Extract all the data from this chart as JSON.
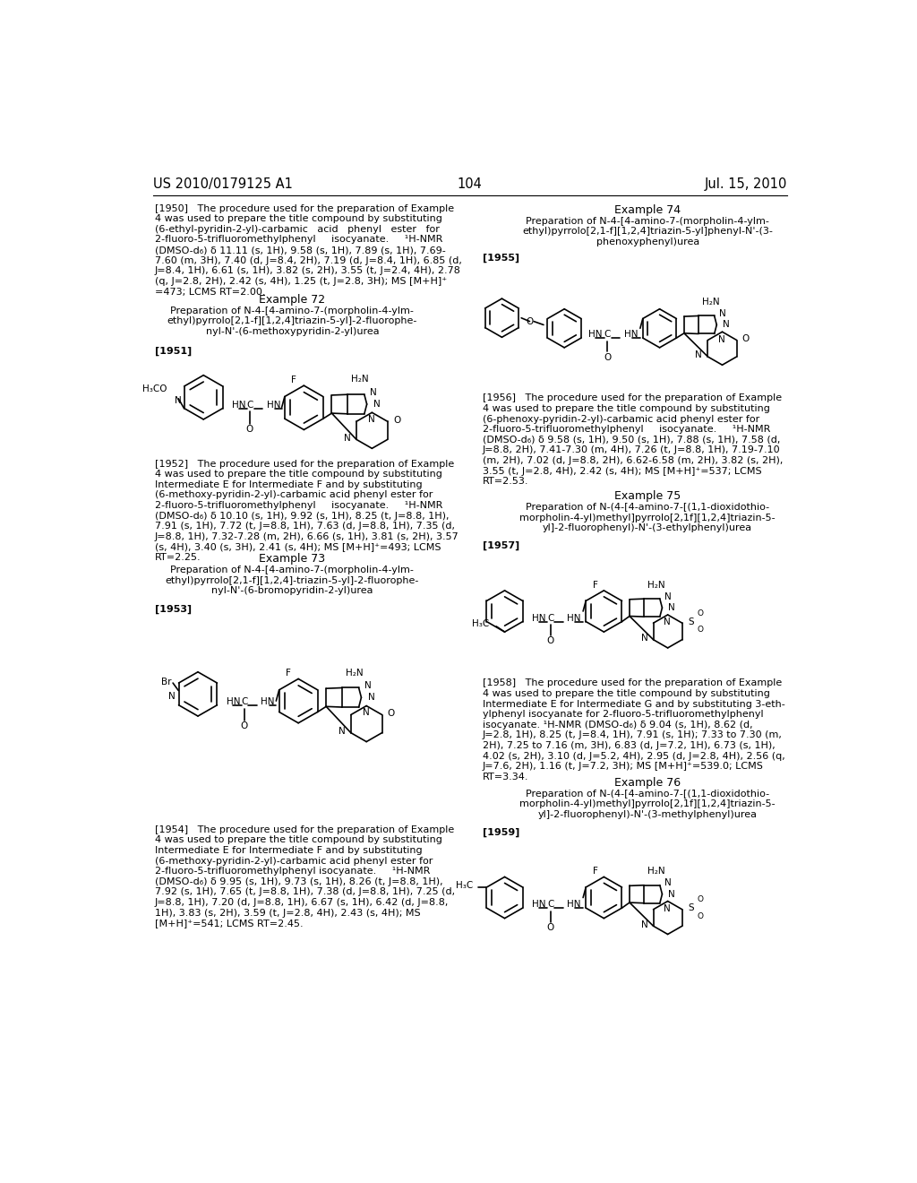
{
  "header_left": "US 2010/0179125 A1",
  "header_right": "Jul. 15, 2010",
  "page_number": "104",
  "background_color": "#ffffff",
  "text_color": "#000000",
  "body_fs": 8.0,
  "header_fs": 10.5,
  "example_fs": 9.0,
  "tag_fs": 8.0
}
